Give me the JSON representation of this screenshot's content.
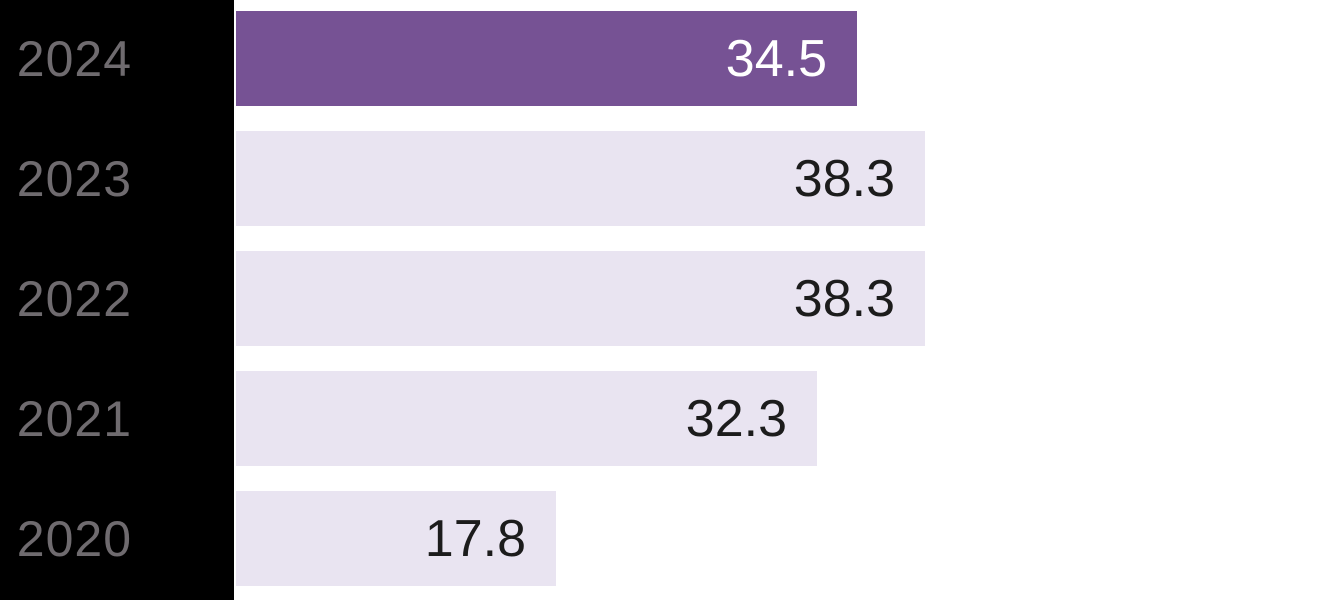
{
  "chart_data": {
    "type": "bar",
    "orientation": "horizontal",
    "categories": [
      "2024",
      "2023",
      "2022",
      "2021",
      "2020"
    ],
    "values": [
      34.5,
      38.3,
      38.3,
      32.3,
      17.8
    ],
    "value_labels": [
      "34.5",
      "38.3",
      "38.3",
      "32.3",
      "17.8"
    ],
    "highlighted_index": 0,
    "value_label_position": "inside-right",
    "axes_visible": false,
    "grid": false,
    "legend": false
  },
  "colors": {
    "background": "#ffffff",
    "sidebar_background": "#000000",
    "category_label": "#6f6b6f",
    "highlight_bar": "#765294",
    "bar": "#e9e4f1",
    "value_on_highlight": "#ffffff",
    "value_on_bar": "#1c1c1c"
  }
}
